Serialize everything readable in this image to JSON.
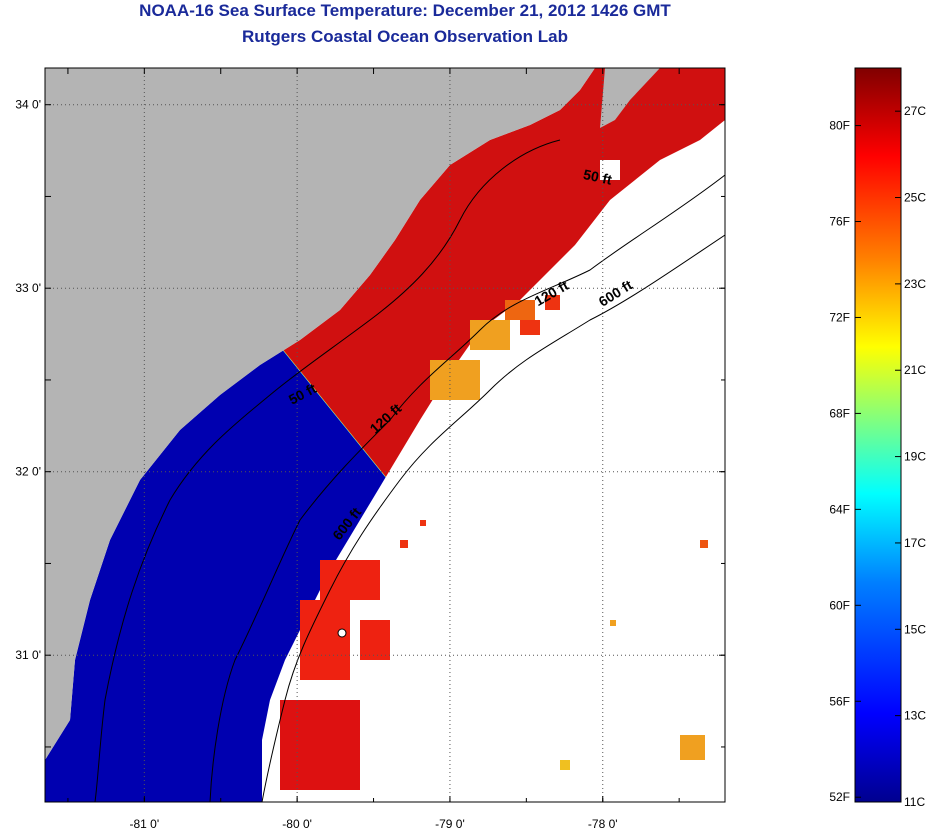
{
  "title": {
    "line1": "NOAA-16 Sea Surface Temperature:  December 21, 2012 1426 GMT",
    "line2": "Rutgers Coastal Ocean Observation Lab"
  },
  "map": {
    "lon_range": [
      -81.65,
      -77.2
    ],
    "lat_range": [
      30.2,
      34.2
    ],
    "lon_ticks": [
      {
        "value": -81,
        "label": "-81 0'"
      },
      {
        "value": -80,
        "label": "-80 0'"
      },
      {
        "value": -79,
        "label": "-79 0'"
      },
      {
        "value": -78,
        "label": "-78 0'"
      }
    ],
    "lat_ticks": [
      {
        "value": 34,
        "label": "34 0'"
      },
      {
        "value": 33,
        "label": "33 0'"
      },
      {
        "value": 32,
        "label": "32 0'"
      },
      {
        "value": 31,
        "label": "31 0'"
      }
    ],
    "colors": {
      "land": "#b4b4b4",
      "no_data": "#ffffff",
      "gridline": "#333333"
    }
  },
  "contour_labels": [
    {
      "text": "50 ft",
      "lon": -78.04,
      "lat": 33.58,
      "rotate": 12
    },
    {
      "text": "50 ft",
      "lon": -79.95,
      "lat": 32.4,
      "rotate": -28
    },
    {
      "text": "120 ft",
      "lon": -78.32,
      "lat": 32.95,
      "rotate": -30
    },
    {
      "text": "120 ft",
      "lon": -79.4,
      "lat": 32.27,
      "rotate": -42
    },
    {
      "text": "600 ft",
      "lon": -77.9,
      "lat": 32.95,
      "rotate": -32
    },
    {
      "text": "600 ft",
      "lon": -79.65,
      "lat": 31.7,
      "rotate": -52
    }
  ],
  "colorbar": {
    "min_c": 11,
    "max_c": 28,
    "f_labels": [
      "80F",
      "76F",
      "72F",
      "68F",
      "64F",
      "60F",
      "56F",
      "52F"
    ],
    "c_labels": [
      "27C",
      "25C",
      "23C",
      "21C",
      "19C",
      "17C",
      "15C",
      "13C",
      "11C"
    ],
    "palette": [
      "#00008f",
      "#0000ff",
      "#0080ff",
      "#00ffff",
      "#80ff80",
      "#ffff00",
      "#ff8000",
      "#ff0000",
      "#800000"
    ]
  }
}
